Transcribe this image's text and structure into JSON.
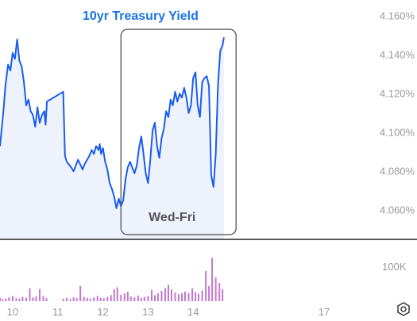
{
  "chart_data": {
    "type": "line",
    "title": "10yr Treasury Yield",
    "ylim": [
      4.045,
      4.165
    ],
    "y_ticks": [
      "4.160%",
      "4.140%",
      "4.120%",
      "4.100%",
      "4.080%",
      "4.060%"
    ],
    "y_tick_values": [
      4.16,
      4.14,
      4.12,
      4.1,
      4.08,
      4.06
    ],
    "x_ticks": [
      "10",
      "11",
      "12",
      "13",
      "14",
      "17"
    ],
    "xlim": [
      9.72,
      17.85
    ],
    "x_tick_values": [
      10,
      11,
      12,
      13,
      14,
      16.9
    ],
    "series": [
      {
        "x": [
          9.72,
          9.8,
          9.84,
          9.9,
          9.95,
          10.0,
          10.05,
          10.1,
          10.15,
          10.2,
          10.25,
          10.3,
          10.35,
          10.4,
          10.45,
          10.5,
          10.55,
          10.6,
          10.65,
          10.7,
          10.73,
          10.76,
          11.12,
          11.16,
          11.2,
          11.3,
          11.35,
          11.45,
          11.55,
          11.6,
          11.7,
          11.75,
          11.8,
          11.85,
          11.9,
          11.93,
          11.96,
          12.0,
          12.05,
          12.1,
          12.15,
          12.2,
          12.25,
          12.3,
          12.35,
          12.4,
          12.45,
          12.5,
          12.55,
          12.6,
          12.7,
          12.75,
          12.8,
          12.85,
          12.9,
          12.95,
          13.0,
          13.05,
          13.1,
          13.15,
          13.2,
          13.25,
          13.3,
          13.35,
          13.4,
          13.45,
          13.5,
          13.55,
          13.6,
          13.65,
          13.7,
          13.75,
          13.8,
          13.85,
          13.9,
          13.95,
          14.0,
          14.05,
          14.1,
          14.15,
          14.2,
          14.25,
          14.3,
          14.35,
          14.4,
          14.45,
          14.5,
          14.55,
          14.6,
          14.65,
          14.68
        ],
        "values": [
          4.093,
          4.112,
          4.124,
          4.135,
          4.132,
          4.141,
          4.138,
          4.148,
          4.137,
          4.134,
          4.126,
          4.114,
          4.117,
          4.111,
          4.109,
          4.103,
          4.113,
          4.105,
          4.109,
          4.111,
          4.104,
          4.116,
          4.121,
          4.088,
          4.085,
          4.082,
          4.08,
          4.086,
          4.081,
          4.084,
          4.088,
          4.091,
          4.089,
          4.093,
          4.091,
          4.094,
          4.089,
          4.092,
          4.085,
          4.081,
          4.074,
          4.071,
          4.067,
          4.061,
          4.066,
          4.062,
          4.065,
          4.076,
          4.082,
          4.085,
          4.079,
          4.083,
          4.092,
          4.098,
          4.089,
          4.079,
          4.074,
          4.086,
          4.101,
          4.105,
          4.093,
          4.087,
          4.097,
          4.102,
          4.111,
          4.108,
          4.117,
          4.114,
          4.121,
          4.116,
          4.12,
          4.118,
          4.123,
          4.118,
          4.11,
          4.114,
          4.128,
          4.131,
          4.114,
          4.108,
          4.126,
          4.128,
          4.129,
          4.124,
          4.078,
          4.072,
          4.089,
          4.125,
          4.142,
          4.145,
          4.149
        ]
      }
    ],
    "volume": {
      "label": "100K",
      "x": [
        9.72,
        9.78,
        9.85,
        9.92,
        10.0,
        10.08,
        10.15,
        10.22,
        10.3,
        10.38,
        10.45,
        10.52,
        10.6,
        10.68,
        10.75,
        11.12,
        11.2,
        11.28,
        11.35,
        11.42,
        11.5,
        11.58,
        11.65,
        11.72,
        11.8,
        11.88,
        11.95,
        12.02,
        12.1,
        12.18,
        12.25,
        12.32,
        12.4,
        12.48,
        12.55,
        12.62,
        12.7,
        12.78,
        12.85,
        12.92,
        13.0,
        13.08,
        13.15,
        13.22,
        13.3,
        13.38,
        13.45,
        13.52,
        13.6,
        13.68,
        13.75,
        13.82,
        13.9,
        13.98,
        14.05,
        14.12,
        14.2,
        14.28,
        14.35,
        14.42,
        14.5,
        14.58,
        14.65
      ],
      "values": [
        8,
        5,
        6,
        9,
        12,
        7,
        6,
        10,
        8,
        30,
        9,
        11,
        28,
        12,
        7,
        6,
        8,
        5,
        9,
        7,
        35,
        10,
        8,
        6,
        9,
        12,
        8,
        7,
        10,
        14,
        28,
        32,
        15,
        18,
        22,
        11,
        9,
        13,
        8,
        10,
        12,
        26,
        14,
        18,
        24,
        30,
        38,
        27,
        20,
        16,
        18,
        22,
        19,
        30,
        21,
        17,
        25,
        70,
        35,
        100,
        55,
        42,
        28
      ],
      "ylim": [
        0,
        110
      ]
    },
    "annotation": {
      "label": "Wed-Fri",
      "x_range": [
        12.4,
        14.95
      ]
    },
    "colors": {
      "line": "#1a5cf0",
      "fill": "#eef2fc",
      "volume": "#c477cf",
      "annotation_box": "#666666",
      "title": "#1a73e8"
    }
  },
  "ui": {
    "settings_icon": "hexagon-gear-icon"
  }
}
